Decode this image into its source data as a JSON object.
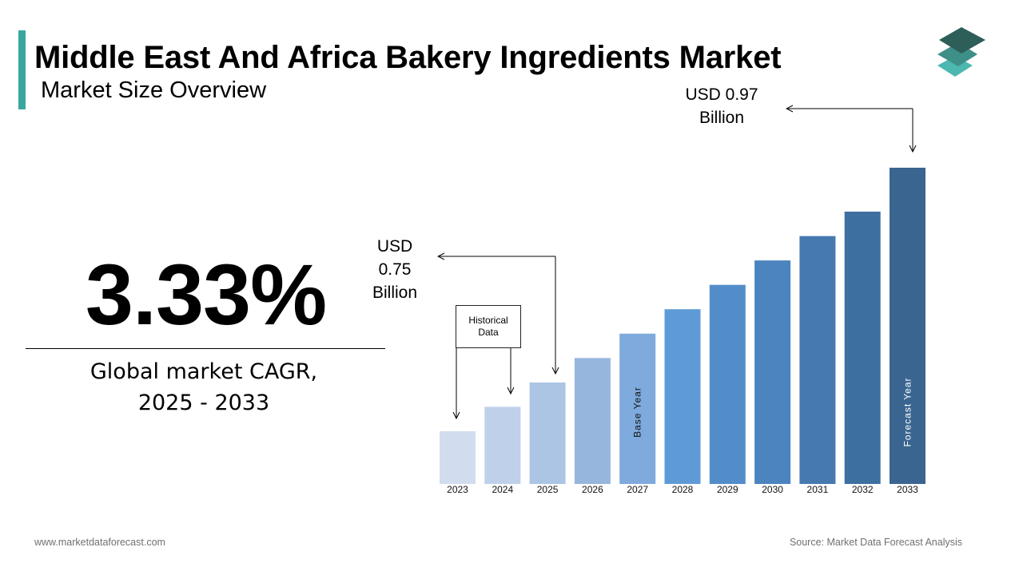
{
  "header": {
    "title": "Middle East And Africa Bakery Ingredients Market",
    "subtitle": "Market Size Overview"
  },
  "summary": {
    "cagr_value": "3.33%",
    "cagr_label_line1": "Global market CAGR,",
    "cagr_label_line2": "2025 - 2033"
  },
  "callouts": {
    "end_value_line1": "USD 0.97",
    "end_value_line2": "Billion",
    "start_value_line1": "USD",
    "start_value_line2": "0.75",
    "start_value_line3": "Billion",
    "historical_line1": "Historical",
    "historical_line2": "Data"
  },
  "chart_data": {
    "type": "bar",
    "categories": [
      "2023",
      "2024",
      "2025",
      "2026",
      "2027",
      "2028",
      "2029",
      "2030",
      "2031",
      "2032",
      "2033"
    ],
    "values": [
      0.7,
      0.725,
      0.75,
      0.775,
      0.8,
      0.825,
      0.85,
      0.875,
      0.9,
      0.925,
      0.97
    ],
    "unit": "USD Billion",
    "colors": [
      "#d1ddee",
      "#bed0ea",
      "#acc5e4",
      "#96b6de",
      "#7eaadd",
      "#5e9bd6",
      "#538dc9",
      "#4b84be",
      "#4579b0",
      "#3e6fa1",
      "#3a6590"
    ],
    "bar_annotations": {
      "2027": "Base Year",
      "2033": "Forecast Year"
    }
  },
  "footer": {
    "website": "www.marketdataforecast.com",
    "source": "Source: Market Data Forecast Analysis"
  },
  "colors": {
    "accent": "#3aa6a0",
    "logo_top": "#2e5e58",
    "logo_mid": "#3d8f87",
    "logo_bottom": "#4cb8b0"
  }
}
